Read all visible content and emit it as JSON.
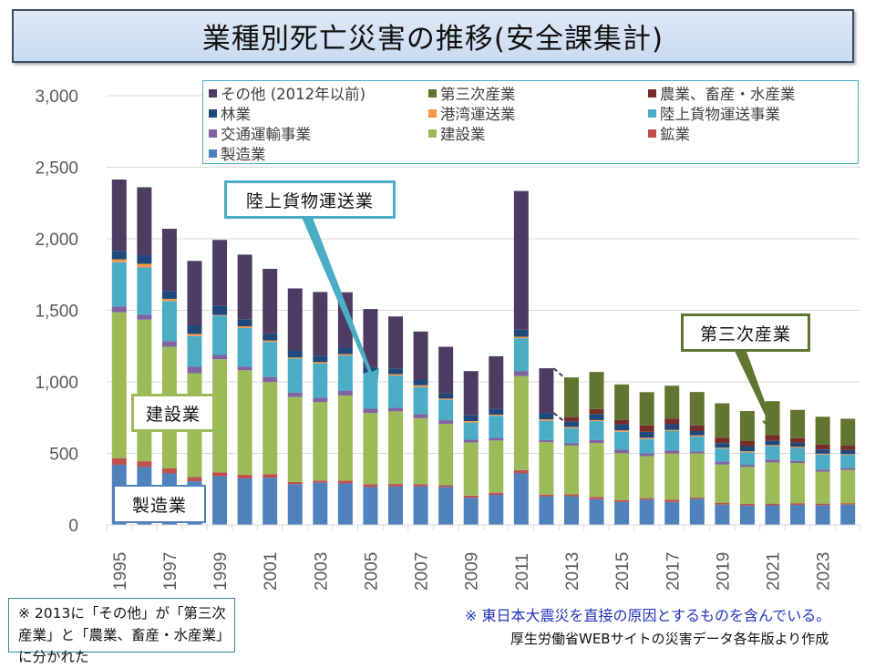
{
  "title": "業種別死亡災害の推移(安全課集計)",
  "callouts": {
    "rikujo": "陸上貨物運送業",
    "kensetsu": "建設業",
    "seizo": "製造業",
    "daisan": "第三次産業"
  },
  "notes": {
    "left": "※  2013に「その他」が「第三次産業」と「農業、畜産・水産業」に分かれた",
    "right": "※ 東日本大震災を直接の原因とするものを含んでいる。",
    "source": "厚生労働省WEBサイトの災害データ各年版より作成"
  },
  "chart_data": {
    "type": "bar",
    "stacked": true,
    "title": "業種別死亡災害の推移(安全課集計)",
    "xlabel": "",
    "ylabel": "",
    "ylim": [
      0,
      3000
    ],
    "yticks": [
      "0",
      "500",
      "1,000",
      "1,500",
      "2,000",
      "2,500",
      "3,000"
    ],
    "ytick_values": [
      0,
      500,
      1000,
      1500,
      2000,
      2500,
      3000
    ],
    "grid": true,
    "legend_position": "top-right",
    "categories": [
      "1995",
      "1996",
      "1997",
      "1998",
      "1999",
      "2000",
      "2001",
      "2002",
      "2003",
      "2004",
      "2005",
      "2006",
      "2007",
      "2008",
      "2009",
      "2010",
      "2011",
      "2012",
      "2013",
      "2014",
      "2015",
      "2016",
      "2017",
      "2018",
      "2019",
      "2020",
      "2021",
      "2022",
      "2023",
      "2024"
    ],
    "xtick_labels": [
      "1995",
      "1997",
      "1999",
      "2001",
      "2003",
      "2005",
      "2007",
      "2009",
      "2011",
      "2013",
      "2015",
      "2017",
      "2019",
      "2021",
      "2023"
    ],
    "series": [
      {
        "name": "製造業",
        "color": "#4f81bd",
        "values": [
          420,
          405,
          360,
          305,
          340,
          325,
          330,
          285,
          295,
          290,
          265,
          268,
          270,
          265,
          190,
          210,
          360,
          200,
          200,
          180,
          160,
          177,
          160,
          183,
          142,
          136,
          137,
          140,
          138,
          142
        ]
      },
      {
        "name": "鉱業",
        "color": "#c0504d",
        "values": [
          45,
          40,
          35,
          30,
          28,
          25,
          25,
          15,
          15,
          20,
          20,
          18,
          15,
          12,
          15,
          15,
          23,
          12,
          13,
          16,
          14,
          10,
          16,
          8,
          11,
          11,
          12,
          12,
          11,
          10
        ]
      },
      {
        "name": "建設業",
        "color": "#9bbb59",
        "values": [
          1021,
          990,
          850,
          725,
          790,
          731,
          644,
          594,
          548,
          594,
          497,
          508,
          461,
          430,
          371,
          365,
          658,
          367,
          342,
          377,
          327,
          294,
          323,
          309,
          269,
          258,
          288,
          281,
          223,
          232
        ]
      },
      {
        "name": "交通運輸事業",
        "color": "#8064a2",
        "values": [
          40,
          35,
          40,
          45,
          30,
          25,
          35,
          30,
          30,
          35,
          30,
          25,
          30,
          25,
          20,
          18,
          35,
          15,
          15,
          20,
          25,
          20,
          20,
          15,
          20,
          15,
          20,
          15,
          15,
          15
        ]
      },
      {
        "name": "陸上貨物運送事業",
        "color": "#4bacc6",
        "values": [
          310,
          330,
          280,
          215,
          275,
          270,
          245,
          238,
          240,
          245,
          233,
          225,
          188,
          143,
          120,
          155,
          229,
          134,
          107,
          132,
          125,
          99,
          137,
          102,
          92,
          87,
          95,
          90,
          105,
          91
        ]
      },
      {
        "name": "港湾運送業",
        "color": "#f79646",
        "values": [
          20,
          25,
          15,
          15,
          5,
          12,
          10,
          8,
          10,
          10,
          8,
          10,
          12,
          8,
          10,
          8,
          10,
          10,
          8,
          8,
          10,
          9,
          8,
          9,
          6,
          8,
          6,
          8,
          6,
          5
        ]
      },
      {
        "name": "林業",
        "color": "#1f497d",
        "values": [
          60,
          60,
          55,
          60,
          65,
          50,
          50,
          50,
          45,
          45,
          50,
          40,
          40,
          35,
          40,
          40,
          50,
          45,
          39,
          42,
          42,
          42,
          40,
          30,
          32,
          36,
          30,
          28,
          29,
          29
        ]
      },
      {
        "name": "農業、畜産・水産業",
        "color": "#772c2a",
        "values": [
          0,
          0,
          0,
          0,
          0,
          0,
          0,
          0,
          0,
          0,
          0,
          0,
          0,
          0,
          0,
          0,
          0,
          0,
          30,
          35,
          30,
          45,
          40,
          40,
          38,
          35,
          40,
          33,
          34,
          30
        ]
      },
      {
        "name": "第三次産業",
        "color": "#5f7530",
        "values": [
          0,
          0,
          0,
          0,
          0,
          0,
          0,
          0,
          0,
          0,
          0,
          0,
          0,
          0,
          0,
          0,
          0,
          0,
          277,
          259,
          249,
          232,
          229,
          233,
          240,
          210,
          237,
          197,
          195,
          188
        ]
      },
      {
        "name": "その他(2012年以前)",
        "color": "#4e3b62",
        "values": [
          498,
          475,
          435,
          450,
          459,
          451,
          451,
          433,
          445,
          387,
          406,
          363,
          336,
          327,
          309,
          368,
          969,
          312,
          0,
          0,
          0,
          0,
          0,
          0,
          0,
          0,
          0,
          0,
          0,
          0
        ]
      }
    ],
    "legend": [
      {
        "name": "その他 (2012年以前)",
        "color": "#4e3b62"
      },
      {
        "name": "第三次産業",
        "color": "#5f7530"
      },
      {
        "name": "農業、畜産・水産業",
        "color": "#772c2a"
      },
      {
        "name": "林業",
        "color": "#1f497d"
      },
      {
        "name": "港湾運送業",
        "color": "#f79646"
      },
      {
        "name": "陸上貨物運送事業",
        "color": "#4bacc6"
      },
      {
        "name": "交通運輸事業",
        "color": "#8064a2"
      },
      {
        "name": "建設業",
        "color": "#9bbb59"
      },
      {
        "name": "鉱業",
        "color": "#c0504d"
      },
      {
        "name": "製造業",
        "color": "#4f81bd"
      }
    ]
  }
}
